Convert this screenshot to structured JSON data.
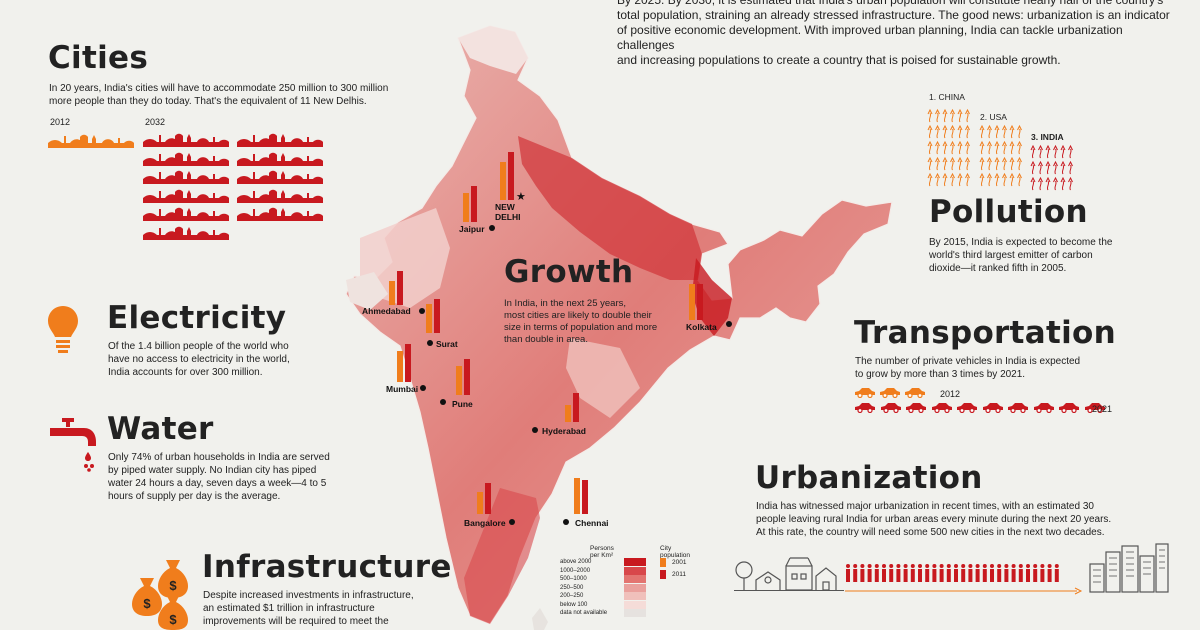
{
  "intro": {
    "line1": "By 2025. By 2030, it is estimated that India's urban population will constitute nearly half of the country's",
    "line2": "total population, straining an already stressed infrastructure. The good news: urbanization is an indicator",
    "line3": "of positive economic development. With improved urban planning, India can tackle urbanization challenges",
    "line4": "and increasing populations to create a country that is poised for sustainable growth."
  },
  "cities": {
    "title": "Cities",
    "text1": "In 20 years, India's cities will have to accommodate 250 million to 300 million",
    "text2": "more people than they do today. That's the equivalent of 11 New Delhis.",
    "year_a": "2012",
    "year_b": "2032",
    "skyline_2012": 1,
    "skyline_2032": 11
  },
  "electricity": {
    "title": "Electricity",
    "text1": "Of the 1.4 billion people of the world who",
    "text2": "have no access to electricity in the world,",
    "text3": "India accounts for over 300 million."
  },
  "water": {
    "title": "Water",
    "text1": "Only 74% of urban households in India are served",
    "text2": "by piped water supply. No Indian city has piped",
    "text3": "water 24 hours a day, seven days a week—4 to 5",
    "text4": "hours of supply per day is the average."
  },
  "infrastructure": {
    "title": "Infrastructure",
    "text1": "Despite increased investments in infrastructure,",
    "text2": "an estimated $1 trillion in infrastructure",
    "text3": "improvements will be required to meet the"
  },
  "growth": {
    "title": "Growth",
    "text1": "In India, in the next 25 years,",
    "text2": "most cities are likely to double their",
    "text3": "size in terms of population and more",
    "text4": "than double in area."
  },
  "map_cities": [
    {
      "name": "NEW DELHI",
      "p2001": 0.8,
      "p2011": 1.0
    },
    {
      "name": "Jaipur",
      "p2001": 0.6,
      "p2011": 0.75
    },
    {
      "name": "Ahmedabad",
      "p2001": 0.5,
      "p2011": 0.7
    },
    {
      "name": "Surat",
      "p2001": 0.6,
      "p2011": 0.7
    },
    {
      "name": "Mumbai",
      "p2001": 0.65,
      "p2011": 0.8
    },
    {
      "name": "Pune",
      "p2001": 0.6,
      "p2011": 0.75
    },
    {
      "name": "Kolkata",
      "p2001": 0.75,
      "p2011": 0.75
    },
    {
      "name": "Hyderabad",
      "p2001": 0.35,
      "p2011": 0.6
    },
    {
      "name": "Bangalore",
      "p2001": 0.45,
      "p2011": 0.65
    },
    {
      "name": "Chennai",
      "p2001": 0.75,
      "p2011": 0.7
    }
  ],
  "map_legend": {
    "density_title": "Persons per Km²",
    "density_levels": [
      "above 2000",
      "1000–2000",
      "500–1000",
      "250–500",
      "200–250",
      "below 100",
      "data not available"
    ],
    "density_colors": [
      "#c8191f",
      "#d8474a",
      "#e37470",
      "#eaa09c",
      "#f0c0bb",
      "#f5dcd8",
      "#e6e2df"
    ],
    "pop_title": "City population",
    "pop_2001": "2001",
    "pop_2011": "2011",
    "color_2001": "#f07d1c",
    "color_2011": "#c8191f"
  },
  "pollution": {
    "title": "Pollution",
    "rank1": "1. CHINA",
    "rank2": "2. USA",
    "rank3": "3. INDIA",
    "text1": "By 2015, India is expected to become the",
    "text2": "world's third largest emitter of carbon",
    "text3": "dioxide—it ranked fifth in 2005."
  },
  "transportation": {
    "title": "Transportation",
    "text1": "The number of private vehicles in India is expected",
    "text2": "to grow by more than 3 times by 2021.",
    "year_a": "2012",
    "year_b": "2021",
    "cars_2012": 3,
    "cars_2021": 10
  },
  "urbanization": {
    "title": "Urbanization",
    "text1": "India has witnessed major urbanization in recent times, with an estimated 30",
    "text2": "people leaving rural India for urban areas every minute during the next 20 years.",
    "text3": "At this rate, the country will need some 500 new cities in the next two decades.",
    "people_count": 30
  },
  "colors": {
    "orange": "#f07d1c",
    "red": "#c8191f",
    "background": "#f1f1ed"
  }
}
